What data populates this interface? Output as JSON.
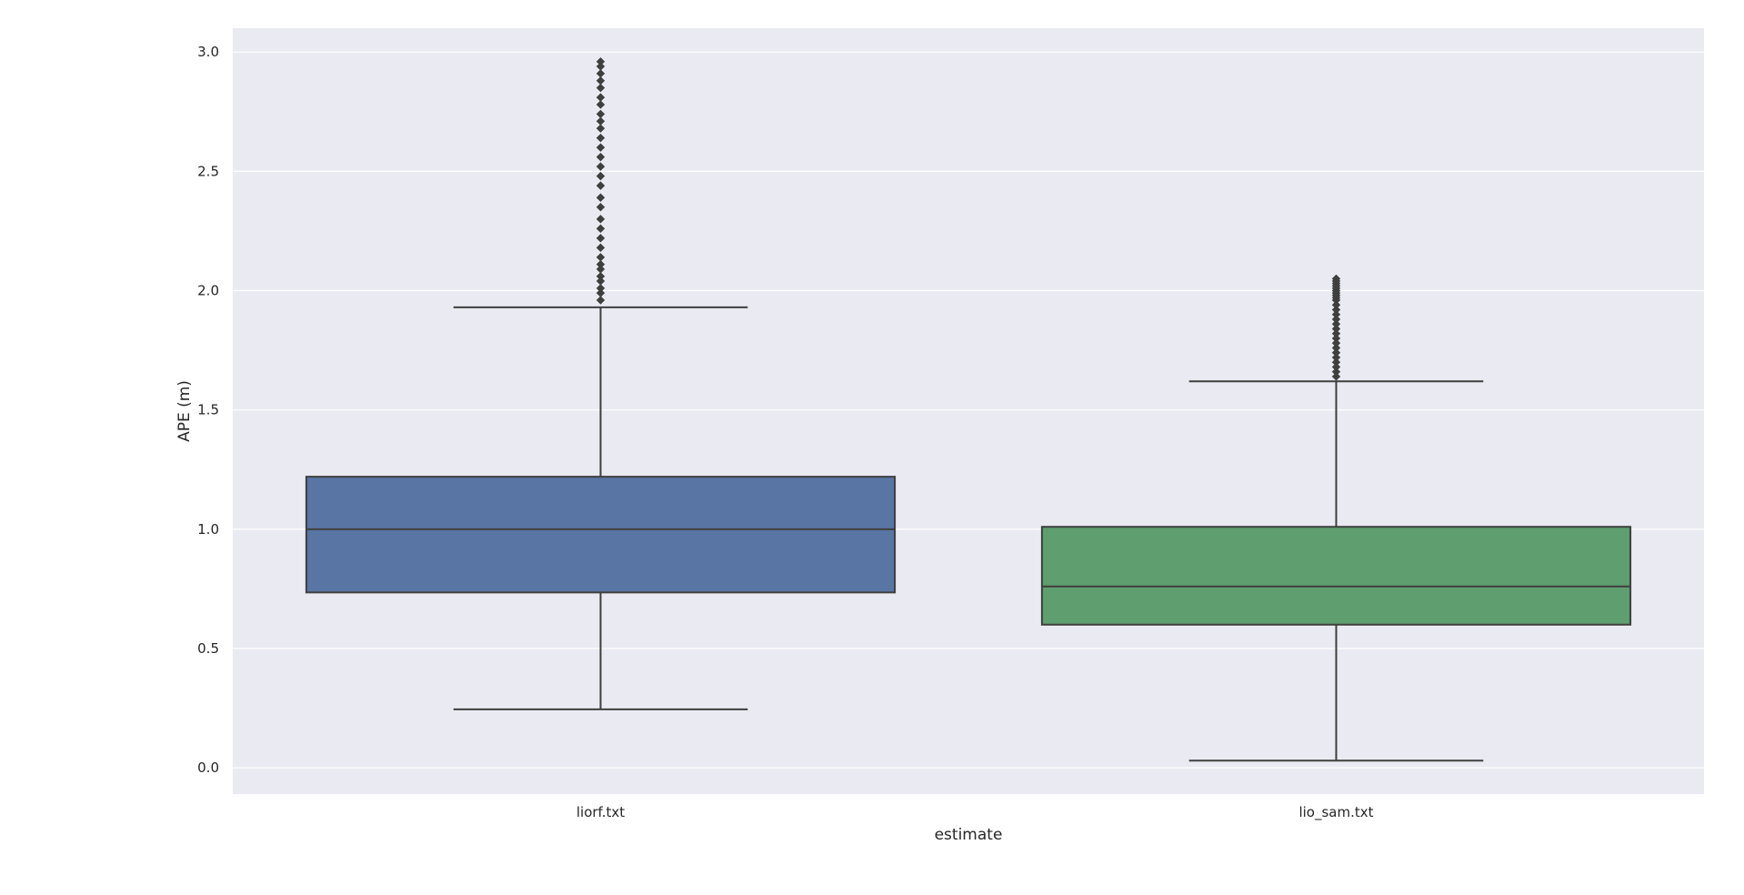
{
  "chart_data": {
    "type": "box",
    "xlabel": "estimate",
    "ylabel": "APE (m)",
    "ylim": [
      -0.11,
      3.1
    ],
    "yticks": [
      0.0,
      0.5,
      1.0,
      1.5,
      2.0,
      2.5,
      3.0
    ],
    "ytick_labels": [
      "0.0",
      "0.5",
      "1.0",
      "1.5",
      "2.0",
      "2.5",
      "3.0"
    ],
    "categories": [
      "liorf.txt",
      "lio_sam.txt"
    ],
    "grid": true,
    "background": "#eaeaf2",
    "gridColor": "#ffffff",
    "edgeColor": "#3f3f3f",
    "boxes": [
      {
        "category": "liorf.txt",
        "color": "#5875a4",
        "whisker_low": 0.245,
        "q1": 0.735,
        "median": 1.0,
        "q3": 1.22,
        "whisker_high": 1.93,
        "outliers": [
          1.96,
          1.99,
          2.01,
          2.04,
          2.06,
          2.09,
          2.11,
          2.14,
          2.18,
          2.22,
          2.26,
          2.3,
          2.35,
          2.39,
          2.44,
          2.48,
          2.52,
          2.56,
          2.6,
          2.64,
          2.68,
          2.71,
          2.74,
          2.78,
          2.81,
          2.85,
          2.88,
          2.91,
          2.94,
          2.96
        ]
      },
      {
        "category": "lio_sam.txt",
        "color": "#5f9e6e",
        "whisker_low": 0.03,
        "q1": 0.6,
        "median": 0.76,
        "q3": 1.01,
        "whisker_high": 1.62,
        "outliers": [
          1.64,
          1.66,
          1.68,
          1.7,
          1.72,
          1.74,
          1.76,
          1.78,
          1.8,
          1.82,
          1.84,
          1.86,
          1.88,
          1.9,
          1.92,
          1.94,
          1.96,
          1.97,
          1.98,
          1.99,
          2.0,
          2.01,
          2.02,
          2.03,
          2.04,
          2.05
        ]
      }
    ]
  }
}
